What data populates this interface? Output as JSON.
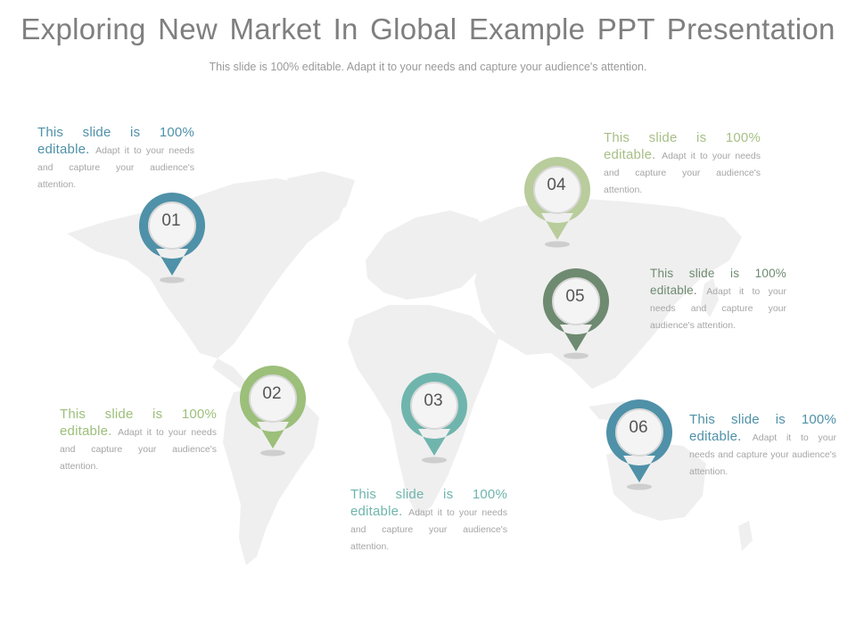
{
  "slide": {
    "title": "Exploring New Market In Global Example PPT Presentation",
    "subtitle": "This slide is 100% editable. Adapt it to your needs and capture your audience's attention."
  },
  "markers": [
    {
      "number": "01",
      "color": "#4f91a8",
      "lead": "This slide is 100% editable.",
      "body": "Adapt it to your needs and capture your audience's attention."
    },
    {
      "number": "02",
      "color": "#9cbf7a",
      "lead": "This slide is 100% editable.",
      "body": "Adapt it to your needs and capture your audience's attention."
    },
    {
      "number": "03",
      "color": "#6fb5ad",
      "lead": "This slide is 100% editable.",
      "body": "Adapt it to your needs and capture your audience's attention."
    },
    {
      "number": "04",
      "color": "#b9cc9c",
      "lead": "This slide is 100% editable.",
      "body": "Adapt it to your needs and capture your audience's attention."
    },
    {
      "number": "05",
      "color": "#6e8a70",
      "lead": "This slide is 100% editable.",
      "body": "Adapt it to your needs and capture your audience's attention."
    },
    {
      "number": "06",
      "color": "#4f91a8",
      "lead": "This slide is 100% editable.",
      "body": "Adapt it to your needs and capture your audience's attention."
    }
  ]
}
